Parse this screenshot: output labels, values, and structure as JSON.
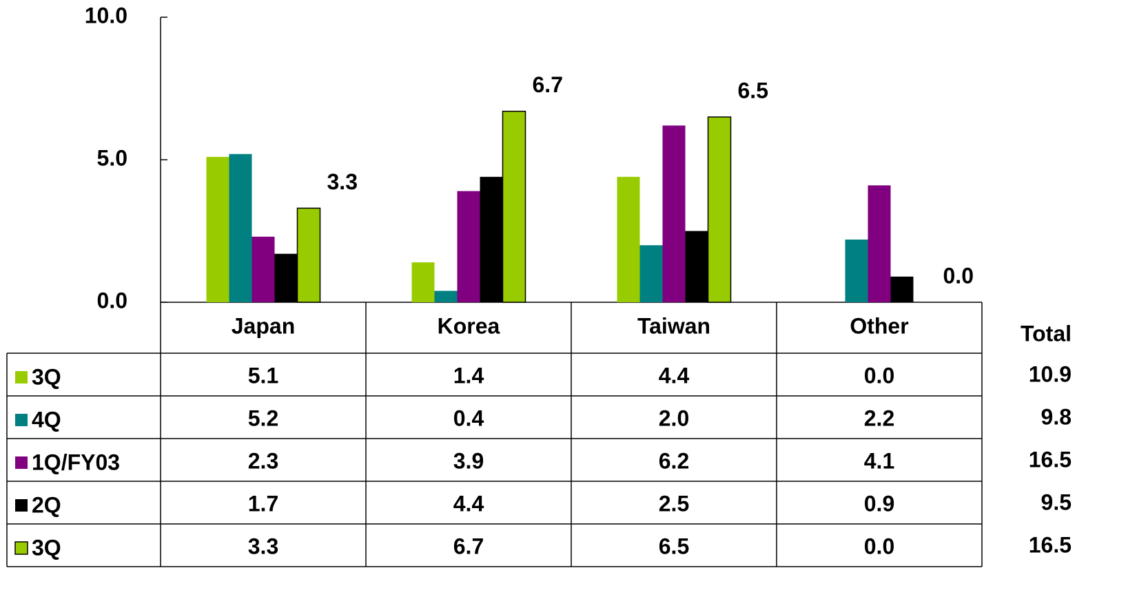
{
  "chart_data": {
    "type": "bar",
    "categories": [
      "Japan",
      "Korea",
      "Taiwan",
      "Other"
    ],
    "series": [
      {
        "name": "3Q",
        "color": "#99cc00",
        "values": [
          5.1,
          1.4,
          4.4,
          0.0
        ],
        "value_labels": [
          "5.1",
          "1.4",
          "4.4",
          "0.0"
        ]
      },
      {
        "name": "4Q",
        "color": "#008080",
        "values": [
          5.2,
          0.4,
          2.0,
          2.2
        ],
        "value_labels": [
          "5.2",
          "0.4",
          "2.0",
          "2.2"
        ]
      },
      {
        "name": "1Q/FY03",
        "color": "#800080",
        "values": [
          2.3,
          3.9,
          6.2,
          4.1
        ],
        "value_labels": [
          "2.3",
          "3.9",
          "6.2",
          "4.1"
        ]
      },
      {
        "name": "2Q",
        "color": "#000000",
        "values": [
          1.7,
          4.4,
          2.5,
          0.9
        ],
        "value_labels": [
          "1.7",
          "4.4",
          "2.5",
          "0.9"
        ]
      },
      {
        "name": "3Q",
        "color": "#99cc00",
        "values": [
          3.3,
          6.7,
          6.5,
          0.0
        ],
        "value_labels": [
          "3.3",
          "6.7",
          "6.5",
          "0.0"
        ]
      }
    ],
    "ylim": [
      0,
      10
    ],
    "yticks": [
      {
        "value": 0,
        "label": "0.0"
      },
      {
        "value": 5,
        "label": "5.0"
      },
      {
        "value": 10,
        "label": "10.0"
      }
    ],
    "total_label": "Total",
    "totals": [
      10.9,
      9.8,
      16.5,
      9.5,
      16.5
    ]
  }
}
